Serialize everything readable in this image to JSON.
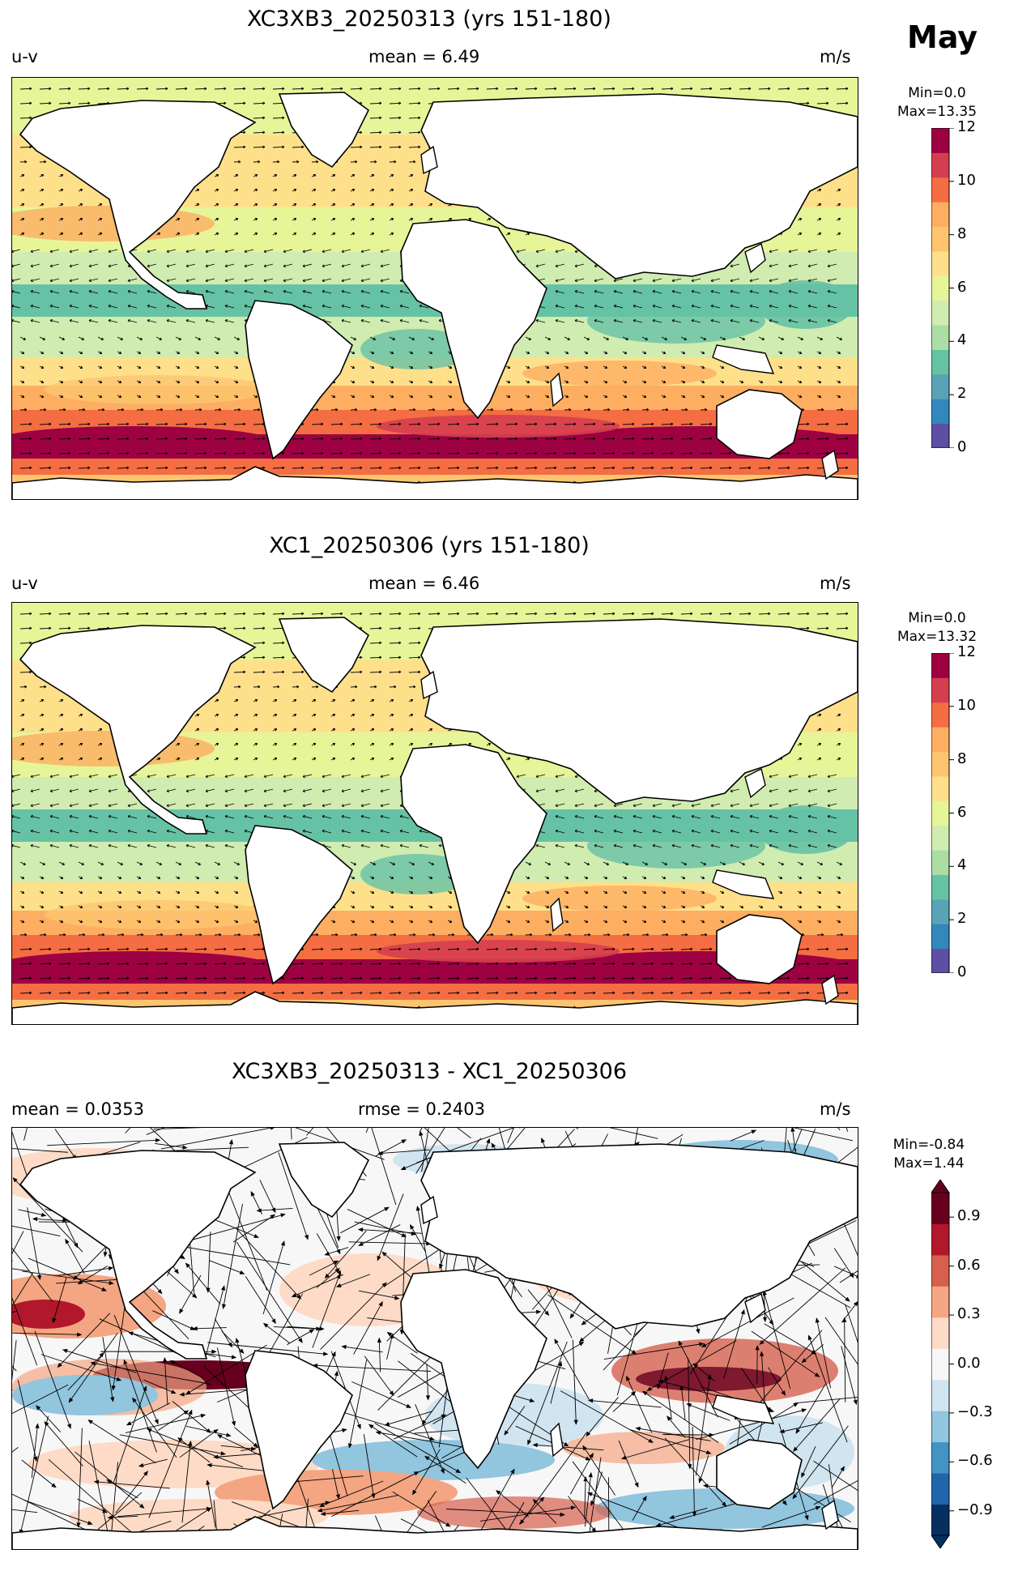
{
  "month": "May",
  "panels": [
    {
      "title": "XC3XB3_20250313 (yrs 151-180)",
      "left_label": "u-v",
      "center_label": "mean = 6.49",
      "right_label": "m/s",
      "colorbar": {
        "min_label": "Min=0.0",
        "max_label": "Max=13.35",
        "ticks": [
          "0",
          "2",
          "4",
          "6",
          "8",
          "10",
          "12"
        ],
        "colors": [
          "#5e4fa2",
          "#3288bd",
          "#5aa3b6",
          "#66c2a5",
          "#abdda4",
          "#d0ecb0",
          "#e6f598",
          "#fee08b",
          "#fdc56f",
          "#fdae61",
          "#f46d43",
          "#d53e4f",
          "#9e0142"
        ],
        "extend": "neither"
      }
    },
    {
      "title": "XC1_20250306 (yrs 151-180)",
      "left_label": "u-v",
      "center_label": "mean = 6.46",
      "right_label": "m/s",
      "colorbar": {
        "min_label": "Min=0.0",
        "max_label": "Max=13.32",
        "ticks": [
          "0",
          "2",
          "4",
          "6",
          "8",
          "10",
          "12"
        ],
        "colors": [
          "#5e4fa2",
          "#3288bd",
          "#5aa3b6",
          "#66c2a5",
          "#abdda4",
          "#d0ecb0",
          "#e6f598",
          "#fee08b",
          "#fdc56f",
          "#fdae61",
          "#f46d43",
          "#d53e4f",
          "#9e0142"
        ],
        "extend": "neither"
      }
    },
    {
      "title": "XC3XB3_20250313 - XC1_20250306",
      "left_label": "mean = 0.0353",
      "center_label": "rmse = 0.2403",
      "right_label": "m/s",
      "colorbar": {
        "min_label": "Min=-0.84",
        "max_label": "Max=1.44",
        "ticks": [
          "0.9",
          "0.6",
          "0.3",
          "0.0",
          "−0.3",
          "−0.6",
          "−0.9"
        ],
        "colors": [
          "#053061",
          "#2166ac",
          "#4393c3",
          "#92c5de",
          "#d1e5f0",
          "#f7f7f7",
          "#fddbc7",
          "#f4a582",
          "#d6604d",
          "#b2182b",
          "#67001f"
        ],
        "extend": "both"
      }
    }
  ],
  "colors": {
    "land": "#ffffff",
    "coast": "#000000",
    "ocean_calm": "#e6f598",
    "ocean_strong": "#9e0142",
    "diff_positive": "#d6604d",
    "diff_negative": "#4393c3"
  }
}
